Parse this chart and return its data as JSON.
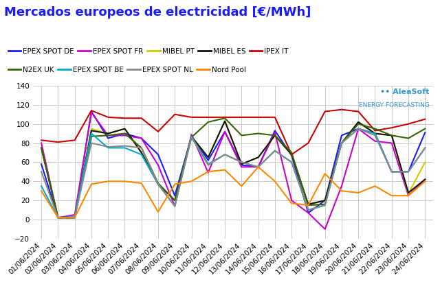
{
  "title": "Mercados europeos de electricidad [€/MWh]",
  "dates": [
    "01/06/2024",
    "02/06/2024",
    "03/06/2024",
    "04/06/2024",
    "05/06/2024",
    "06/06/2024",
    "07/06/2024",
    "08/06/2024",
    "09/06/2024",
    "10/06/2024",
    "11/06/2024",
    "12/06/2024",
    "13/06/2024",
    "14/06/2024",
    "15/06/2024",
    "16/06/2024",
    "17/06/2024",
    "18/06/2024",
    "19/06/2024",
    "20/06/2024",
    "21/06/2024",
    "22/06/2024",
    "23/06/2024",
    "24/06/2024"
  ],
  "series": [
    {
      "name": "EPEX SPOT DE",
      "color": "#1a1aff",
      "data": [
        58,
        2,
        2,
        113,
        85,
        90,
        85,
        68,
        25,
        87,
        62,
        92,
        57,
        55,
        93,
        67,
        7,
        20,
        88,
        95,
        90,
        50,
        50,
        91
      ]
    },
    {
      "name": "EPEX SPOT FR",
      "color": "#cc00cc",
      "data": [
        80,
        2,
        5,
        112,
        88,
        88,
        85,
        57,
        14,
        89,
        49,
        92,
        55,
        55,
        91,
        20,
        7,
        -10,
        35,
        95,
        82,
        80,
        25,
        42
      ]
    },
    {
      "name": "MIBEL PT",
      "color": "#cccc00",
      "data": [
        75,
        2,
        2,
        95,
        90,
        95,
        70,
        37,
        20,
        87,
        65,
        103,
        58,
        65,
        88,
        68,
        15,
        20,
        80,
        102,
        90,
        88,
        27,
        60
      ]
    },
    {
      "name": "MIBEL ES",
      "color": "#111111",
      "data": [
        75,
        2,
        2,
        93,
        90,
        95,
        70,
        37,
        20,
        87,
        65,
        103,
        58,
        65,
        88,
        68,
        16,
        20,
        80,
        102,
        90,
        88,
        28,
        42
      ]
    },
    {
      "name": "IPEX IT",
      "color": "#cc0000",
      "data": [
        83,
        81,
        83,
        114,
        107,
        106,
        106,
        92,
        110,
        107,
        107,
        107,
        107,
        107,
        107,
        68,
        80,
        113,
        115,
        113,
        93,
        96,
        100,
        105
      ]
    },
    {
      "name": "N2EX UK",
      "color": "#336600",
      "data": [
        75,
        2,
        3,
        87,
        88,
        90,
        75,
        38,
        20,
        86,
        102,
        106,
        88,
        90,
        88,
        70,
        15,
        16,
        80,
        100,
        95,
        88,
        85,
        95
      ]
    },
    {
      "name": "EPEX SPOT BE",
      "color": "#00aacc",
      "data": [
        35,
        2,
        3,
        90,
        75,
        75,
        68,
        37,
        14,
        87,
        58,
        68,
        60,
        55,
        72,
        60,
        10,
        15,
        80,
        95,
        90,
        50,
        50,
        75
      ]
    },
    {
      "name": "EPEX SPOT NL",
      "color": "#888888",
      "data": [
        50,
        2,
        2,
        80,
        76,
        77,
        75,
        37,
        14,
        86,
        57,
        68,
        60,
        55,
        72,
        60,
        10,
        15,
        80,
        95,
        88,
        50,
        50,
        75
      ]
    },
    {
      "name": "Nord Pool",
      "color": "#ff8800",
      "data": [
        30,
        2,
        2,
        37,
        40,
        40,
        38,
        8,
        37,
        40,
        50,
        52,
        35,
        55,
        40,
        17,
        15,
        48,
        30,
        28,
        35,
        25,
        25,
        40
      ]
    }
  ],
  "ylim": [
    -20,
    140
  ],
  "yticks": [
    -20,
    0,
    20,
    40,
    60,
    80,
    100,
    120,
    140
  ],
  "grid_color": "#cccccc",
  "bg_color": "#ffffff",
  "title_color": "#1a1aff",
  "title_fontsize": 13,
  "legend_fontsize": 7.5,
  "tick_fontsize": 7.5,
  "watermark_1": "•• AleaSoft",
  "watermark_2": "ENERGY FORECASTING"
}
